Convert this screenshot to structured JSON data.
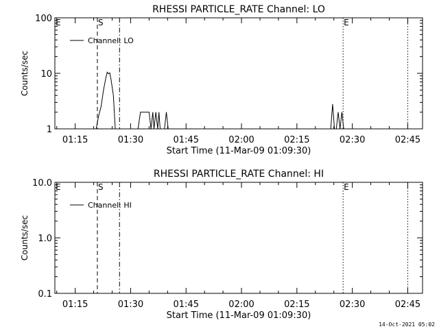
{
  "footer_timestamp": "14-Oct-2021 05:02",
  "chart_data": [
    {
      "type": "line",
      "title": "RHESSI PARTICLE_RATE Channel: LO",
      "xlabel": "Start Time (11-Mar-09 01:09:30)",
      "ylabel": "Counts/sec",
      "yscale": "log",
      "ylim": [
        1,
        100
      ],
      "yticks": [
        {
          "value": 1,
          "label": "1"
        },
        {
          "value": 10,
          "label": "10"
        },
        {
          "value": 100,
          "label": "100"
        }
      ],
      "xlim": [
        "01:09:30",
        "02:49:00"
      ],
      "xticks": [
        "01:15",
        "01:30",
        "01:45",
        "02:00",
        "02:15",
        "02:30",
        "02:45"
      ],
      "legend": {
        "position": "top-left",
        "entries": [
          "Channel: LO"
        ]
      },
      "markers": [
        {
          "label": "E",
          "time": "01:09:30",
          "style": "none"
        },
        {
          "label": "S",
          "time": "01:21:00",
          "style": "dashed"
        },
        {
          "label": "",
          "time": "01:27:00",
          "style": "dashdot"
        },
        {
          "label": "E",
          "time": "02:27:30",
          "style": "dotted"
        },
        {
          "label": "",
          "time": "02:45:00",
          "style": "dotted"
        }
      ],
      "series": [
        {
          "name": "Channel: LO",
          "segments": [
            [
              [
                "01:20:40",
                1
              ],
              [
                "01:21:20",
                1.7
              ],
              [
                "01:22:00",
                2.5
              ],
              [
                "01:22:40",
                5
              ],
              [
                "01:23:20",
                8.5
              ],
              [
                "01:23:40",
                10.5
              ],
              [
                "01:24:00",
                9.8
              ],
              [
                "01:24:20",
                10.2
              ],
              [
                "01:24:40",
                8
              ],
              [
                "01:25:20",
                4
              ],
              [
                "01:25:50",
                1
              ]
            ],
            [
              [
                "01:32:00",
                1
              ],
              [
                "01:32:40",
                2
              ],
              [
                "01:35:00",
                2
              ],
              [
                "01:35:30",
                1
              ],
              [
                "01:36:00",
                2
              ],
              [
                "01:36:20",
                1
              ],
              [
                "01:36:50",
                2
              ],
              [
                "01:37:20",
                1
              ],
              [
                "01:37:40",
                2
              ],
              [
                "01:38:00",
                1
              ]
            ],
            [
              [
                "01:39:10",
                1
              ],
              [
                "01:39:40",
                2
              ],
              [
                "01:40:10",
                1
              ]
            ],
            [
              [
                "02:24:10",
                1
              ],
              [
                "02:24:40",
                2.8
              ],
              [
                "02:25:10",
                1
              ],
              [
                "02:25:40",
                1
              ],
              [
                "02:26:10",
                2
              ],
              [
                "02:26:40",
                1
              ],
              [
                "02:27:10",
                2
              ],
              [
                "02:27:40",
                1
              ],
              [
                "02:28:10",
                1
              ]
            ]
          ]
        }
      ]
    },
    {
      "type": "line",
      "title": "RHESSI PARTICLE_RATE Channel: HI",
      "xlabel": "Start Time (11-Mar-09 01:09:30)",
      "ylabel": "Counts/sec",
      "yscale": "log",
      "ylim": [
        0.1,
        10
      ],
      "yticks": [
        {
          "value": 0.1,
          "label": "0.1"
        },
        {
          "value": 1,
          "label": "1.0"
        },
        {
          "value": 10,
          "label": "10.0"
        }
      ],
      "xlim": [
        "01:09:30",
        "02:49:00"
      ],
      "xticks": [
        "01:15",
        "01:30",
        "01:45",
        "02:00",
        "02:15",
        "02:30",
        "02:45"
      ],
      "legend": {
        "position": "top-left",
        "entries": [
          "Channel: HI"
        ]
      },
      "markers": [
        {
          "label": "E",
          "time": "01:09:30",
          "style": "none"
        },
        {
          "label": "S",
          "time": "01:21:00",
          "style": "dashed"
        },
        {
          "label": "",
          "time": "01:27:00",
          "style": "dashdot"
        },
        {
          "label": "E",
          "time": "02:27:30",
          "style": "dotted"
        },
        {
          "label": "",
          "time": "02:45:00",
          "style": "dotted"
        }
      ],
      "series": [
        {
          "name": "Channel: HI",
          "segments": []
        }
      ]
    }
  ]
}
